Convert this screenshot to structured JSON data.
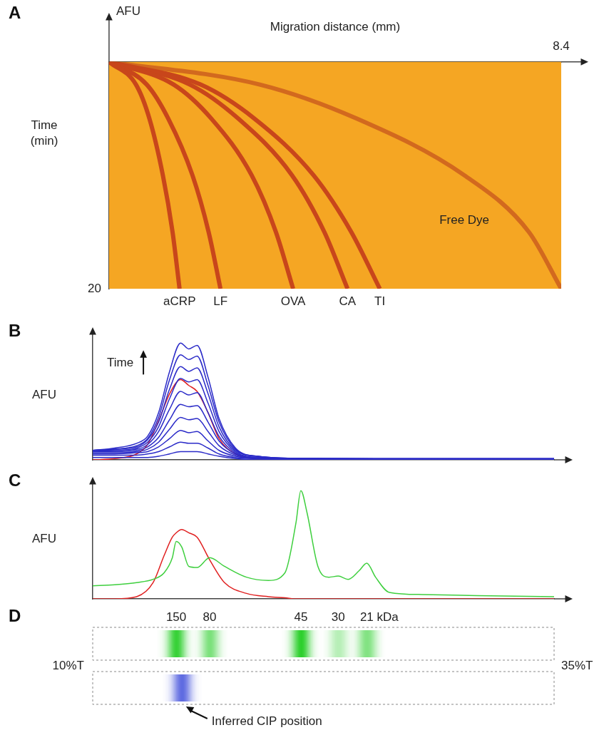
{
  "chart_data": [
    {
      "panel": "A",
      "type": "line",
      "x_label": "Migration distance (mm)",
      "y_label": "Time (min)",
      "z_label": "AFU",
      "xlim": [
        0,
        8.4
      ],
      "xticks": [
        8.4
      ],
      "ylim": [
        0,
        20
      ],
      "yticks": [
        20
      ],
      "grid": false,
      "y": [
        0,
        2,
        5,
        10,
        15,
        20
      ],
      "series": [
        {
          "name": "aCRP",
          "color": "#c8461b",
          "values": [
            0,
            0.5,
            0.75,
            1.0,
            1.18,
            1.31
          ]
        },
        {
          "name": "LF",
          "color": "#c8461b",
          "values": [
            0,
            0.7,
            1.1,
            1.55,
            1.85,
            2.07
          ]
        },
        {
          "name": "OVA",
          "color": "#c8461b",
          "values": [
            0,
            1.2,
            1.9,
            2.65,
            3.1,
            3.42
          ]
        },
        {
          "name": "CA",
          "color": "#c8461b",
          "values": [
            0,
            1.5,
            2.4,
            3.4,
            4.0,
            4.43
          ]
        },
        {
          "name": "TI",
          "color": "#c8461b",
          "values": [
            0,
            1.7,
            2.7,
            3.8,
            4.5,
            5.03
          ]
        },
        {
          "color": "#d2691e",
          "values": [
            0,
            2.8,
            4.6,
            6.6,
            7.8,
            8.4
          ]
        }
      ],
      "annotations": [
        {
          "text": "Free Dye",
          "x": 6.6,
          "y": 14
        }
      ]
    },
    {
      "panel": "B",
      "type": "line",
      "y_label": "AFU",
      "xlim": [
        0,
        8.4
      ],
      "ylim": [
        0,
        110
      ],
      "grid": false,
      "tick_labels": false,
      "x": [
        0,
        0.4,
        0.8,
        1.0,
        1.2,
        1.4,
        1.6,
        1.75,
        1.9,
        2.1,
        2.3,
        2.6,
        3.0,
        4.0,
        8.4
      ],
      "series": [
        {
          "color": "#2b2bc8",
          "values": [
            2,
            2,
            2,
            2,
            3,
            5,
            7,
            7,
            7,
            5,
            3,
            1,
            0,
            0,
            0
          ]
        },
        {
          "color": "#2b2bc8",
          "values": [
            4,
            4,
            4,
            5,
            7,
            11,
            15,
            14,
            14,
            10,
            5,
            2,
            1,
            0,
            0
          ]
        },
        {
          "color": "#2b2bc8",
          "values": [
            5,
            5,
            6,
            7,
            11,
            18,
            25,
            23,
            24,
            16,
            8,
            3,
            1,
            0,
            0
          ]
        },
        {
          "color": "#2b2bc8",
          "values": [
            6,
            6,
            7,
            9,
            15,
            26,
            36,
            34,
            35,
            24,
            12,
            4,
            1,
            0,
            0
          ]
        },
        {
          "color": "#2b2bc8",
          "values": [
            7,
            7,
            8,
            11,
            19,
            34,
            47,
            45,
            46,
            32,
            16,
            5,
            2,
            1,
            0
          ]
        },
        {
          "color": "#2b2bc8",
          "values": [
            7,
            8,
            9,
            13,
            24,
            43,
            58,
            55,
            57,
            40,
            20,
            6,
            2,
            1,
            0
          ]
        },
        {
          "color": "#2b2bc8",
          "values": [
            8,
            8,
            10,
            15,
            28,
            52,
            69,
            66,
            68,
            48,
            24,
            7,
            2,
            1,
            0
          ]
        },
        {
          "color": "#2b2bc8",
          "values": [
            8,
            9,
            11,
            17,
            32,
            60,
            79,
            75,
            78,
            56,
            28,
            8,
            3,
            1,
            0
          ]
        },
        {
          "color": "#2b2bc8",
          "values": [
            8,
            9,
            12,
            18,
            36,
            68,
            89,
            85,
            88,
            63,
            32,
            9,
            3,
            1,
            1
          ]
        },
        {
          "color": "#2b2bc8",
          "values": [
            8,
            10,
            14,
            20,
            40,
            75,
            99,
            94,
            97,
            70,
            35,
            10,
            3,
            1,
            1
          ]
        },
        {
          "color": "#e02020",
          "values": [
            0,
            1,
            5,
            13,
            33,
            56,
            68,
            63,
            58,
            40,
            18,
            5,
            1,
            0,
            0
          ]
        }
      ],
      "annotations": [
        {
          "text": "Time",
          "x": 0.5,
          "y": 82
        }
      ]
    },
    {
      "panel": "C",
      "type": "line",
      "y_label": "AFU",
      "xlim": [
        0,
        8.4
      ],
      "ylim": [
        0,
        110
      ],
      "grid": false,
      "tick_labels": false,
      "x": [
        0,
        0.4,
        0.8,
        1.1,
        1.3,
        1.45,
        1.52,
        1.62,
        1.75,
        1.9,
        2.13,
        2.4,
        2.8,
        3.2,
        3.5,
        3.7,
        3.79,
        3.9,
        4.1,
        4.3,
        4.47,
        4.65,
        4.85,
        4.99,
        5.15,
        5.4,
        6,
        7,
        8.4
      ],
      "series": [
        {
          "color": "#3ecf3e",
          "values": [
            12,
            13,
            15,
            18,
            24,
            38,
            53,
            48,
            30,
            29,
            38,
            30,
            20,
            17,
            24,
            70,
            100,
            80,
            30,
            20,
            21,
            18,
            26,
            33,
            20,
            6,
            4,
            3,
            2
          ]
        },
        {
          "color": "#e02020",
          "values": [
            0,
            0,
            2,
            15,
            40,
            57,
            61,
            64,
            61,
            57,
            36,
            15,
            5,
            2,
            1,
            0,
            0,
            0,
            0,
            0,
            0,
            0,
            0,
            0,
            0,
            0,
            0,
            0,
            0
          ]
        }
      ]
    },
    {
      "panel": "D",
      "type": "bands",
      "xlim": [
        0,
        8.4
      ],
      "band_labels": [
        {
          "value": 1.52,
          "label": "150"
        },
        {
          "value": 2.13,
          "label": "80"
        },
        {
          "value": 3.79,
          "label": "45"
        },
        {
          "value": 4.47,
          "label": "30"
        },
        {
          "value": 4.99,
          "label": "21 kDa"
        }
      ],
      "lanes": [
        {
          "color": "#1fcc1f",
          "bands": [
            {
              "position": 1.52,
              "intensity": 0.95
            },
            {
              "position": 2.13,
              "intensity": 0.6
            },
            {
              "position": 3.79,
              "intensity": 1.0
            },
            {
              "position": 4.47,
              "intensity": 0.35
            },
            {
              "position": 4.99,
              "intensity": 0.65
            }
          ]
        },
        {
          "color": "#2f3fd8",
          "bands": [
            {
              "position": 1.62,
              "intensity": 0.9
            }
          ]
        }
      ],
      "left_label": "10%T",
      "right_label": "35%T",
      "annotation": {
        "text": "Inferred CIP position",
        "x": 1.62
      }
    }
  ]
}
